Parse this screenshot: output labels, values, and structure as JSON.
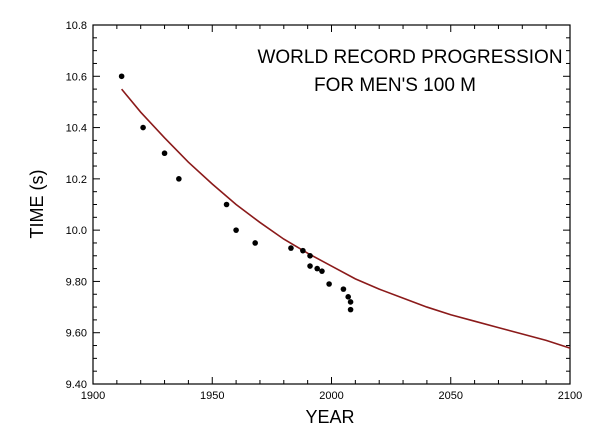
{
  "chart_data": {
    "type": "scatter",
    "title_lines": [
      "WORLD RECORD PROGRESSION",
      "FOR MEN'S 100 M"
    ],
    "xlabel": "YEAR",
    "ylabel": "TIME (s)",
    "xlim": [
      1900,
      2100
    ],
    "ylim": [
      9.4,
      10.8
    ],
    "x_ticks": [
      "1900",
      "1950",
      "2000",
      "2050",
      "2100"
    ],
    "y_ticks": [
      "9.40",
      "9.60",
      "9.80",
      "10.0",
      "10.2",
      "10.4",
      "10.6",
      "10.8"
    ],
    "grid": false,
    "legend": "none",
    "colors": {
      "points": "#000000",
      "fit_line": "#8b1a1a"
    },
    "points": [
      {
        "x": 1912,
        "y": 10.6
      },
      {
        "x": 1921,
        "y": 10.4
      },
      {
        "x": 1930,
        "y": 10.3
      },
      {
        "x": 1936,
        "y": 10.2
      },
      {
        "x": 1956,
        "y": 10.1
      },
      {
        "x": 1960,
        "y": 10.0
      },
      {
        "x": 1968,
        "y": 9.95
      },
      {
        "x": 1983,
        "y": 9.93
      },
      {
        "x": 1988,
        "y": 9.92
      },
      {
        "x": 1991,
        "y": 9.9
      },
      {
        "x": 1991,
        "y": 9.86
      },
      {
        "x": 1994,
        "y": 9.85
      },
      {
        "x": 1996,
        "y": 9.84
      },
      {
        "x": 1999,
        "y": 9.79
      },
      {
        "x": 2005,
        "y": 9.77
      },
      {
        "x": 2007,
        "y": 9.74
      },
      {
        "x": 2008,
        "y": 9.72
      },
      {
        "x": 2008,
        "y": 9.69
      }
    ],
    "fit_curve": {
      "x": [
        1912,
        1920,
        1930,
        1940,
        1950,
        1960,
        1970,
        1980,
        1990,
        2000,
        2010,
        2020,
        2030,
        2040,
        2050,
        2060,
        2070,
        2080,
        2090,
        2100
      ],
      "y": [
        10.55,
        10.46,
        10.36,
        10.265,
        10.18,
        10.1,
        10.03,
        9.965,
        9.91,
        9.86,
        9.81,
        9.77,
        9.735,
        9.7,
        9.67,
        9.645,
        9.62,
        9.595,
        9.57,
        9.54
      ]
    }
  }
}
